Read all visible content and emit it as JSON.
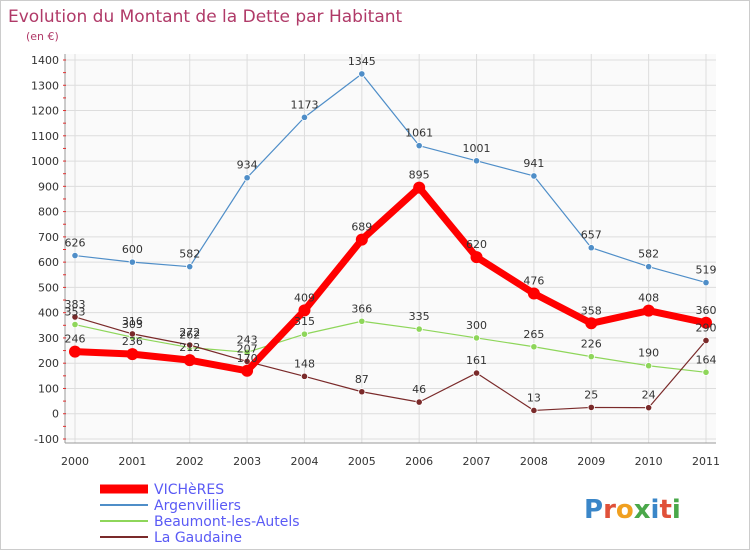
{
  "chart_data": {
    "type": "line",
    "title": "Evolution du Montant de la Dette par Habitant",
    "subtitle": "(en €)",
    "x": [
      "2000",
      "2001",
      "2002",
      "2003",
      "2004",
      "2005",
      "2006",
      "2007",
      "2008",
      "2009",
      "2010",
      "2011"
    ],
    "ylim": [
      -100,
      1400
    ],
    "yticks": [
      -100,
      0,
      100,
      200,
      300,
      400,
      500,
      600,
      700,
      800,
      900,
      1000,
      1100,
      1200,
      1300,
      1400
    ],
    "grid": true,
    "legend_position": "bottom-left",
    "series": [
      {
        "name": "VICHèRES",
        "color": "#ff0000",
        "values": [
          246,
          236,
          212,
          170,
          409,
          689,
          895,
          620,
          476,
          358,
          408,
          360
        ]
      },
      {
        "name": "Argenvilliers",
        "color": "#4f8ec8",
        "values": [
          626,
          600,
          582,
          934,
          1173,
          1345,
          1061,
          1001,
          941,
          657,
          582,
          519
        ]
      },
      {
        "name": "Beaumont-les-Autels",
        "color": "#8ed65a",
        "values": [
          353,
          303,
          262,
          243,
          315,
          366,
          335,
          300,
          265,
          226,
          190,
          164
        ]
      },
      {
        "name": "La Gaudaine",
        "color": "#7a2a2a",
        "values": [
          383,
          316,
          272,
          207,
          148,
          87,
          46,
          161,
          13,
          25,
          24,
          290
        ]
      }
    ]
  },
  "logo": {
    "text": "Proxiti"
  }
}
